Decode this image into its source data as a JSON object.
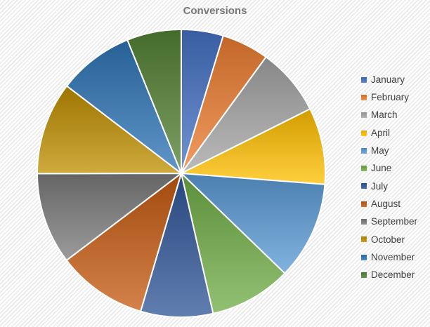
{
  "chart_data": {
    "type": "pie",
    "title": "Conversions",
    "categories": [
      "January",
      "February",
      "March",
      "April",
      "May",
      "June",
      "July",
      "August",
      "September",
      "October",
      "November",
      "December"
    ],
    "values_percent": [
      4.7,
      5.3,
      7.6,
      8.6,
      11.0,
      9.2,
      8.1,
      10.1,
      10.3,
      10.4,
      8.5,
      6.1
    ],
    "colors": [
      "#4472C4",
      "#ED7D31",
      "#A5A5A5",
      "#FFC000",
      "#5B9BD5",
      "#70AD47",
      "#2F5597",
      "#C55A11",
      "#7B7B7B",
      "#BF8F00",
      "#2E75B6",
      "#548235"
    ],
    "start_angle_deg": 0,
    "direction": "clockwise",
    "legend_position": "right",
    "slice_border_color": "#FFFFFF",
    "title_color": "#767676",
    "legend_text_color": "#404040",
    "background_stripe_color": "#E9E9E9"
  }
}
